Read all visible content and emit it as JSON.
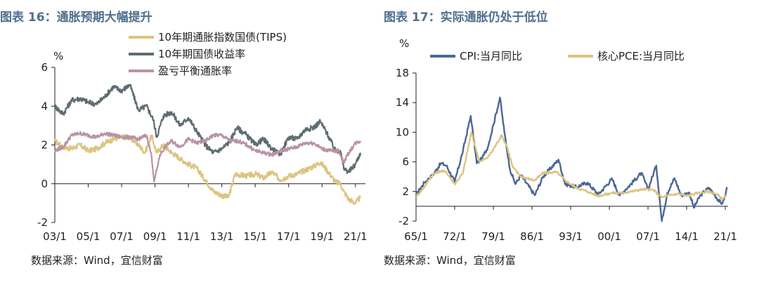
{
  "left": {
    "title": "图表 16：通胀预期大幅提升",
    "source": "数据来源：Wind，宜信财富"
  },
  "right": {
    "title": "图表 17：实际通胀仍处于低位",
    "source": "数据来源：Wind，宜信财富"
  },
  "chart_data": [
    {
      "type": "line",
      "title": "图表 16：通胀预期大幅提升",
      "ylabel": "%",
      "ylim": [
        -2,
        6
      ],
      "yticks": [
        -2,
        0,
        2,
        4,
        6
      ],
      "xlim": [
        2003.0,
        2021.6
      ],
      "xtick_labels": [
        "03/1",
        "05/1",
        "07/1",
        "09/1",
        "11/1",
        "13/1",
        "15/1",
        "17/1",
        "19/1",
        "21/1"
      ],
      "xtick_values": [
        2003,
        2005,
        2007,
        2009,
        2011,
        2013,
        2015,
        2017,
        2019,
        2021
      ],
      "legend_position": "top",
      "series": [
        {
          "name": "10年期通胀指数国债(TIPS)",
          "color": "#dcc481",
          "x": [
            2003.0,
            2003.5,
            2004.0,
            2004.5,
            2005.0,
            2005.5,
            2006.0,
            2006.5,
            2007.0,
            2007.5,
            2008.0,
            2008.4,
            2008.8,
            2008.95,
            2009.1,
            2009.5,
            2010.0,
            2010.5,
            2011.0,
            2011.5,
            2012.0,
            2012.5,
            2013.0,
            2013.4,
            2013.8,
            2014.5,
            2015.0,
            2015.5,
            2016.0,
            2016.5,
            2017.0,
            2017.5,
            2018.0,
            2018.5,
            2018.9,
            2019.3,
            2019.8,
            2020.1,
            2020.3,
            2020.6,
            2021.0,
            2021.3
          ],
          "values": [
            2.2,
            1.9,
            1.8,
            2.0,
            1.7,
            1.8,
            2.1,
            2.3,
            2.4,
            2.4,
            2.0,
            1.6,
            2.5,
            2.0,
            1.6,
            2.0,
            1.6,
            1.3,
            1.0,
            0.8,
            0.2,
            -0.4,
            -0.6,
            -0.7,
            0.5,
            0.4,
            0.5,
            0.3,
            0.6,
            0.2,
            0.4,
            0.5,
            0.7,
            0.9,
            1.1,
            0.7,
            0.1,
            0.0,
            -0.4,
            -0.8,
            -1.0,
            -0.7
          ]
        },
        {
          "name": "10年期国债收益率",
          "color": "#5f6d72",
          "x": [
            2003.0,
            2003.5,
            2004.0,
            2004.5,
            2005.0,
            2005.5,
            2006.0,
            2006.5,
            2007.0,
            2007.5,
            2008.0,
            2008.5,
            2008.9,
            2009.1,
            2009.5,
            2010.0,
            2010.5,
            2011.0,
            2011.5,
            2012.0,
            2012.5,
            2013.0,
            2013.5,
            2013.9,
            2014.5,
            2015.0,
            2015.5,
            2016.0,
            2016.5,
            2017.0,
            2017.5,
            2018.0,
            2018.5,
            2018.9,
            2019.3,
            2019.8,
            2020.1,
            2020.3,
            2020.6,
            2021.0,
            2021.3
          ],
          "values": [
            4.0,
            3.6,
            4.3,
            4.4,
            4.2,
            4.1,
            4.5,
            5.0,
            4.8,
            5.1,
            3.8,
            4.0,
            3.3,
            2.4,
            3.5,
            3.7,
            3.0,
            3.4,
            2.7,
            2.0,
            1.6,
            1.8,
            2.2,
            2.9,
            2.5,
            2.0,
            2.3,
            1.8,
            1.5,
            2.4,
            2.3,
            2.8,
            2.9,
            3.2,
            2.6,
            1.7,
            1.7,
            0.8,
            0.6,
            1.0,
            1.6
          ]
        },
        {
          "name": "盈亏平衡通胀率",
          "color": "#b893a4",
          "x": [
            2003.0,
            2003.5,
            2004.0,
            2004.5,
            2005.0,
            2005.5,
            2006.0,
            2006.5,
            2007.0,
            2007.5,
            2008.0,
            2008.5,
            2008.8,
            2008.95,
            2009.3,
            2009.7,
            2010.0,
            2010.5,
            2011.0,
            2011.5,
            2012.0,
            2012.5,
            2013.0,
            2013.5,
            2014.0,
            2014.5,
            2015.0,
            2015.5,
            2016.0,
            2016.5,
            2017.0,
            2017.5,
            2018.0,
            2018.5,
            2019.0,
            2019.5,
            2020.0,
            2020.3,
            2020.6,
            2021.0,
            2021.3
          ],
          "values": [
            1.7,
            1.9,
            2.5,
            2.6,
            2.5,
            2.4,
            2.6,
            2.5,
            2.4,
            2.4,
            2.3,
            2.5,
            1.4,
            0.1,
            1.5,
            2.0,
            2.2,
            1.9,
            2.3,
            2.1,
            2.2,
            2.5,
            2.5,
            2.2,
            2.2,
            2.0,
            1.7,
            1.6,
            1.5,
            1.7,
            1.8,
            1.9,
            2.1,
            2.1,
            1.8,
            1.7,
            1.7,
            1.1,
            1.6,
            2.1,
            2.2
          ]
        }
      ]
    },
    {
      "type": "line",
      "title": "图表 17：实际通胀仍处于低位",
      "ylabel": "%",
      "ylim": [
        -2,
        18
      ],
      "yticks": [
        -2,
        2,
        6,
        10,
        14,
        18
      ],
      "xlim": [
        1965.0,
        2021.5
      ],
      "xtick_labels": [
        "65/1",
        "72/1",
        "79/1",
        "86/1",
        "93/1",
        "00/1",
        "07/1",
        "14/1",
        "21/1"
      ],
      "xtick_values": [
        1965,
        1972,
        1979,
        1986,
        1993,
        2000,
        2007,
        2014,
        2021
      ],
      "legend_position": "top",
      "series": [
        {
          "name": "CPI:当月同比",
          "color": "#4a6798",
          "x": [
            1965.0,
            1966.5,
            1968.0,
            1969.5,
            1970.5,
            1972.0,
            1973.5,
            1974.9,
            1976.0,
            1977.0,
            1978.0,
            1979.0,
            1980.2,
            1981.0,
            1982.0,
            1983.0,
            1984.0,
            1986.5,
            1988.0,
            1990.8,
            1992.0,
            1994.0,
            1996.0,
            1998.0,
            2000.5,
            2001.8,
            2003.0,
            2005.8,
            2007.0,
            2008.5,
            2009.5,
            2010.5,
            2011.8,
            2013.0,
            2014.5,
            2015.3,
            2016.5,
            2018.0,
            2019.0,
            2020.3,
            2021.0,
            2021.3
          ],
          "values": [
            1.5,
            3.2,
            4.2,
            5.8,
            5.5,
            3.3,
            7.5,
            12.2,
            5.8,
            6.5,
            8.0,
            11.0,
            14.7,
            10.0,
            5.0,
            3.0,
            4.2,
            1.5,
            4.0,
            6.3,
            3.0,
            2.6,
            3.2,
            1.6,
            3.7,
            1.5,
            2.3,
            4.5,
            2.3,
            5.5,
            -2.0,
            1.8,
            3.8,
            1.5,
            1.8,
            -0.2,
            1.5,
            2.5,
            1.6,
            0.3,
            1.4,
            2.6
          ]
        },
        {
          "name": "核心PCE:当月同比",
          "color": "#dcc481",
          "x": [
            1965.0,
            1966.5,
            1968.0,
            1969.5,
            1970.5,
            1972.0,
            1973.5,
            1975.0,
            1976.5,
            1978.0,
            1979.0,
            1980.5,
            1981.5,
            1982.5,
            1984.0,
            1986.5,
            1988.0,
            1990.5,
            1992.0,
            1994.0,
            1996.0,
            1998.0,
            2000.5,
            2002.0,
            2004.0,
            2006.0,
            2008.0,
            2009.5,
            2011.0,
            2012.5,
            2014.0,
            2016.0,
            2018.0,
            2019.5,
            2020.4,
            2021.3
          ],
          "values": [
            1.3,
            2.6,
            4.3,
            4.8,
            4.6,
            3.0,
            4.5,
            10.0,
            6.0,
            6.6,
            7.7,
            9.6,
            8.0,
            5.3,
            4.0,
            3.5,
            4.5,
            4.6,
            3.5,
            2.5,
            2.0,
            1.4,
            1.8,
            1.8,
            2.0,
            2.3,
            2.2,
            1.2,
            1.5,
            1.7,
            1.4,
            1.8,
            2.0,
            1.6,
            1.0,
            1.5
          ]
        }
      ]
    }
  ]
}
